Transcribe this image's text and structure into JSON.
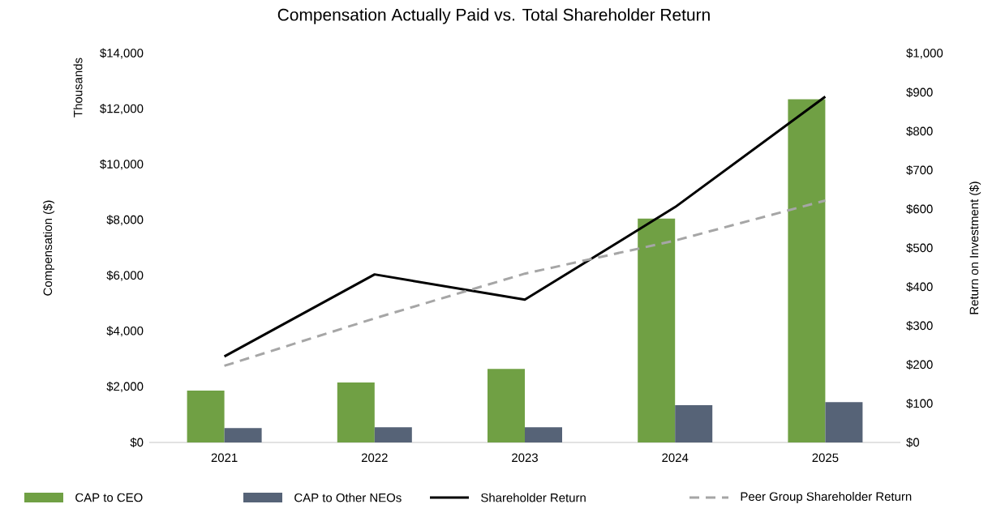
{
  "chart_data": {
    "type": "bar",
    "title": "Compensation Actually Paid vs. Total Shareholder Return",
    "ylabel": "Compensation ($)",
    "y2label": "Return on Investment  ($)",
    "annotations": [
      "Thousands"
    ],
    "categories": [
      "2021",
      "2022",
      "2023",
      "2024",
      "2025"
    ],
    "series": [
      {
        "name": "CAP to CEO",
        "color": "#70a044",
        "values": [
          1870,
          2160,
          2650,
          8060,
          12350
        ]
      },
      {
        "name": "CAP to Other NEOs",
        "color": "#566377",
        "values": [
          520,
          550,
          550,
          1340,
          1450
        ]
      },
      {
        "name": "Shareholder Return",
        "type": "line",
        "axis": "y2",
        "color": "#000000",
        "line_style": "solid",
        "values": [
          221,
          432,
          367,
          605,
          889
        ]
      },
      {
        "name": "Peer Group Shareholder Return",
        "type": "line",
        "axis": "y2",
        "color": "#a6a6a6",
        "line_style": "dashed",
        "values": [
          197,
          319,
          434,
          519,
          622
        ]
      }
    ],
    "ylim": [
      0,
      14000
    ],
    "yticks": [
      {
        "value": 0,
        "label": "$0"
      },
      {
        "value": 2000,
        "label": "$2,000"
      },
      {
        "value": 4000,
        "label": "$4,000"
      },
      {
        "value": 6000,
        "label": "$6,000"
      },
      {
        "value": 8000,
        "label": "$8,000"
      },
      {
        "value": 10000,
        "label": "$10,000"
      },
      {
        "value": 12000,
        "label": "$12,000"
      },
      {
        "value": 14000,
        "label": "$14,000"
      }
    ],
    "y2lim": [
      0,
      1000
    ],
    "y2ticks": [
      {
        "value": 0,
        "label": "$0"
      },
      {
        "value": 100,
        "label": "$100"
      },
      {
        "value": 200,
        "label": "$200"
      },
      {
        "value": 300,
        "label": "$300"
      },
      {
        "value": 400,
        "label": "$400"
      },
      {
        "value": 500,
        "label": "$500"
      },
      {
        "value": 600,
        "label": "$600"
      },
      {
        "value": 700,
        "label": "$700"
      },
      {
        "value": 800,
        "label": "$800"
      },
      {
        "value": 900,
        "label": "$900"
      },
      {
        "value": 1000,
        "label": "$1,000"
      }
    ],
    "legend": "bottom"
  }
}
